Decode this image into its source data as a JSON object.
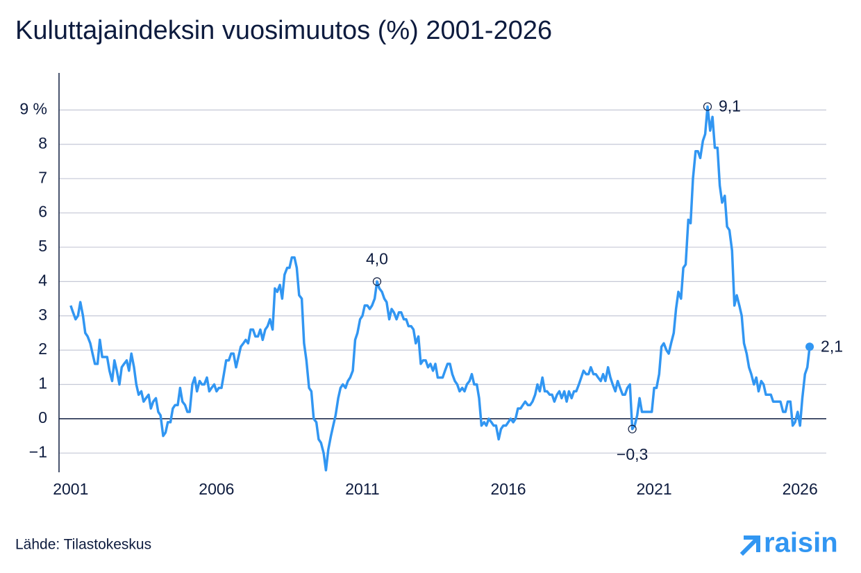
{
  "chart_data": {
    "type": "line",
    "title": "Kuluttajaindeksin vuosimuutos (%) 2001-2026",
    "source": "Lähde: Tilastokeskus",
    "brand": "raisin",
    "xlim": [
      2000.6,
      2026.9
    ],
    "xticks": [
      2001,
      2006,
      2011,
      2016,
      2021,
      2026
    ],
    "ylim": [
      -1.5,
      10
    ],
    "yticks": [
      {
        "value": -1,
        "label": "−1"
      },
      0,
      1,
      2,
      3,
      4,
      5,
      6,
      7,
      8,
      {
        "value": 9,
        "label": "9 %"
      }
    ],
    "grid": true,
    "x": [
      2001,
      2001.08,
      2001.17,
      2001.25,
      2001.33,
      2001.42,
      2001.5,
      2001.58,
      2001.67,
      2001.75,
      2001.83,
      2001.92,
      2002,
      2002.08,
      2002.17,
      2002.25,
      2002.33,
      2002.42,
      2002.5,
      2002.58,
      2002.67,
      2002.75,
      2002.83,
      2002.92,
      2003,
      2003.08,
      2003.17,
      2003.25,
      2003.33,
      2003.42,
      2003.5,
      2003.58,
      2003.67,
      2003.75,
      2003.83,
      2003.92,
      2004,
      2004.08,
      2004.17,
      2004.25,
      2004.33,
      2004.42,
      2004.5,
      2004.58,
      2004.67,
      2004.75,
      2004.83,
      2004.92,
      2005,
      2005.08,
      2005.17,
      2005.25,
      2005.33,
      2005.42,
      2005.5,
      2005.58,
      2005.67,
      2005.75,
      2005.83,
      2005.92,
      2006,
      2006.08,
      2006.17,
      2006.25,
      2006.33,
      2006.42,
      2006.5,
      2006.58,
      2006.67,
      2006.75,
      2006.83,
      2006.92,
      2007,
      2007.08,
      2007.17,
      2007.25,
      2007.33,
      2007.42,
      2007.5,
      2007.58,
      2007.67,
      2007.75,
      2007.83,
      2007.92,
      2008,
      2008.08,
      2008.17,
      2008.25,
      2008.33,
      2008.42,
      2008.5,
      2008.58,
      2008.67,
      2008.75,
      2008.83,
      2008.92,
      2009,
      2009.08,
      2009.17,
      2009.25,
      2009.33,
      2009.42,
      2009.5,
      2009.58,
      2009.67,
      2009.75,
      2009.83,
      2009.92,
      2010,
      2010.08,
      2010.17,
      2010.25,
      2010.33,
      2010.42,
      2010.5,
      2010.58,
      2010.67,
      2010.75,
      2010.83,
      2010.92,
      2011,
      2011.08,
      2011.17,
      2011.25,
      2011.33,
      2011.42,
      2011.5,
      2011.58,
      2011.67,
      2011.75,
      2011.83,
      2011.92,
      2012,
      2012.08,
      2012.17,
      2012.25,
      2012.33,
      2012.42,
      2012.5,
      2012.58,
      2012.67,
      2012.75,
      2012.83,
      2012.92,
      2013,
      2013.08,
      2013.17,
      2013.25,
      2013.33,
      2013.42,
      2013.5,
      2013.58,
      2013.67,
      2013.75,
      2013.83,
      2013.92,
      2014,
      2014.08,
      2014.17,
      2014.25,
      2014.33,
      2014.42,
      2014.5,
      2014.58,
      2014.67,
      2014.75,
      2014.83,
      2014.92,
      2015,
      2015.08,
      2015.17,
      2015.25,
      2015.33,
      2015.42,
      2015.5,
      2015.58,
      2015.67,
      2015.75,
      2015.83,
      2015.92,
      2016,
      2016.08,
      2016.17,
      2016.25,
      2016.33,
      2016.42,
      2016.5,
      2016.58,
      2016.67,
      2016.75,
      2016.83,
      2016.92,
      2017,
      2017.08,
      2017.17,
      2017.25,
      2017.33,
      2017.42,
      2017.5,
      2017.58,
      2017.67,
      2017.75,
      2017.83,
      2017.92,
      2018,
      2018.08,
      2018.17,
      2018.25,
      2018.33,
      2018.42,
      2018.5,
      2018.58,
      2018.67,
      2018.75,
      2018.83,
      2018.92,
      2019,
      2019.08,
      2019.17,
      2019.25,
      2019.33,
      2019.42,
      2019.5,
      2019.58,
      2019.67,
      2019.75,
      2019.83,
      2019.92,
      2020,
      2020.08,
      2020.17,
      2020.25,
      2020.33,
      2020.42,
      2020.5,
      2020.58,
      2020.67,
      2020.75,
      2020.83,
      2020.92,
      2021,
      2021.08,
      2021.17,
      2021.25,
      2021.33,
      2021.42,
      2021.5,
      2021.58,
      2021.67,
      2021.75,
      2021.83,
      2021.92,
      2022,
      2022.08,
      2022.17,
      2022.25,
      2022.33,
      2022.42,
      2022.5,
      2022.58,
      2022.67,
      2022.75,
      2022.83,
      2022.92,
      2023,
      2023.08,
      2023.17,
      2023.25,
      2023.33,
      2023.42,
      2023.5,
      2023.58,
      2023.67,
      2023.75,
      2023.83,
      2023.92,
      2024,
      2024.08,
      2024.17,
      2024.25,
      2024.33,
      2024.42,
      2024.5,
      2024.58,
      2024.67,
      2024.75,
      2024.83,
      2024.92,
      2025,
      2025.08,
      2025.17,
      2025.25,
      2025.33,
      2025.42,
      2025.5,
      2025.58,
      2025.67,
      2025.75,
      2025.83,
      2025.92,
      2026,
      2026.08,
      2026.17,
      2026.25,
      2026.33
    ],
    "series": [
      {
        "color": "#3196f2",
        "values": [
          3.3,
          3.1,
          2.9,
          3.0,
          3.4,
          3.0,
          2.5,
          2.4,
          2.2,
          1.9,
          1.6,
          1.6,
          2.3,
          1.8,
          1.8,
          1.8,
          1.4,
          1.1,
          1.7,
          1.4,
          1.0,
          1.5,
          1.6,
          1.7,
          1.4,
          1.9,
          1.5,
          1.0,
          0.7,
          0.8,
          0.5,
          0.6,
          0.7,
          0.3,
          0.5,
          0.6,
          0.2,
          0.1,
          -0.5,
          -0.4,
          -0.1,
          -0.1,
          0.3,
          0.4,
          0.4,
          0.9,
          0.5,
          0.4,
          0.2,
          0.2,
          1.0,
          1.2,
          0.8,
          1.1,
          1.0,
          1.0,
          1.2,
          0.8,
          0.9,
          1.0,
          0.8,
          0.9,
          0.9,
          1.3,
          1.7,
          1.7,
          1.9,
          1.9,
          1.5,
          1.8,
          2.1,
          2.2,
          2.3,
          2.2,
          2.6,
          2.6,
          2.4,
          2.4,
          2.6,
          2.3,
          2.6,
          2.7,
          2.9,
          2.6,
          3.8,
          3.7,
          3.9,
          3.5,
          4.2,
          4.4,
          4.4,
          4.7,
          4.7,
          4.4,
          3.6,
          3.5,
          2.2,
          1.7,
          0.9,
          0.8,
          0.0,
          -0.1,
          -0.6,
          -0.7,
          -1.0,
          -1.5,
          -0.9,
          -0.5,
          -0.2,
          0.1,
          0.6,
          0.9,
          1.0,
          0.9,
          1.1,
          1.2,
          1.4,
          2.3,
          2.5,
          2.9,
          3.0,
          3.3,
          3.3,
          3.2,
          3.3,
          3.5,
          4.0,
          3.8,
          3.7,
          3.5,
          3.4,
          2.9,
          3.2,
          3.1,
          2.9,
          3.1,
          3.1,
          2.9,
          2.9,
          2.7,
          2.7,
          2.6,
          2.2,
          2.4,
          1.6,
          1.7,
          1.7,
          1.5,
          1.6,
          1.4,
          1.6,
          1.2,
          1.2,
          1.2,
          1.4,
          1.6,
          1.6,
          1.3,
          1.1,
          1.0,
          0.8,
          0.9,
          0.8,
          1.0,
          1.1,
          1.3,
          1.0,
          1.0,
          0.6,
          -0.2,
          -0.1,
          -0.2,
          0.0,
          -0.1,
          -0.2,
          -0.2,
          -0.6,
          -0.3,
          -0.2,
          -0.2,
          -0.1,
          0.0,
          -0.1,
          0.0,
          0.3,
          0.3,
          0.4,
          0.5,
          0.4,
          0.4,
          0.5,
          0.7,
          1.0,
          0.8,
          1.2,
          0.8,
          0.8,
          0.7,
          0.7,
          0.5,
          0.7,
          0.8,
          0.6,
          0.8,
          0.5,
          0.8,
          0.6,
          0.8,
          0.8,
          1.0,
          1.2,
          1.4,
          1.3,
          1.3,
          1.5,
          1.3,
          1.3,
          1.2,
          1.1,
          1.3,
          1.1,
          1.5,
          1.2,
          1.0,
          0.8,
          1.1,
          0.9,
          0.7,
          0.7,
          0.9,
          1.0,
          -0.3,
          -0.2,
          0.1,
          0.6,
          0.2,
          0.2,
          0.2,
          0.2,
          0.2,
          0.9,
          0.9,
          1.3,
          2.1,
          2.2,
          2.0,
          1.9,
          2.2,
          2.5,
          3.2,
          3.7,
          3.5,
          4.4,
          4.5,
          5.8,
          5.7,
          7.0,
          7.8,
          7.8,
          7.6,
          8.1,
          8.3,
          9.1,
          8.4,
          8.8,
          7.9,
          7.9,
          6.8,
          6.3,
          6.5,
          5.6,
          5.5,
          4.9,
          3.3,
          3.6,
          3.3,
          3.0,
          2.2,
          1.9,
          1.5,
          1.3,
          1.0,
          1.2,
          0.8,
          1.1,
          1.0,
          0.7,
          0.7,
          0.7,
          0.5,
          0.5,
          0.5,
          0.5,
          0.2,
          0.2,
          0.5,
          0.5,
          -0.2,
          -0.1,
          0.2,
          -0.2,
          0.6,
          1.3,
          1.5,
          2.1
        ]
      }
    ],
    "annotations": [
      {
        "label": "4,0",
        "x": 2011.5,
        "value": 4.0,
        "marker": "open",
        "position": "above"
      },
      {
        "label": "9,1",
        "x": 2022.83,
        "value": 9.1,
        "marker": "open",
        "position": "right"
      },
      {
        "label": "−0,3",
        "x": 2020.25,
        "value": -0.3,
        "marker": "open",
        "position": "below"
      },
      {
        "label": "2,1",
        "x": 2026.33,
        "value": 2.1,
        "marker": "filled",
        "position": "right"
      }
    ]
  }
}
